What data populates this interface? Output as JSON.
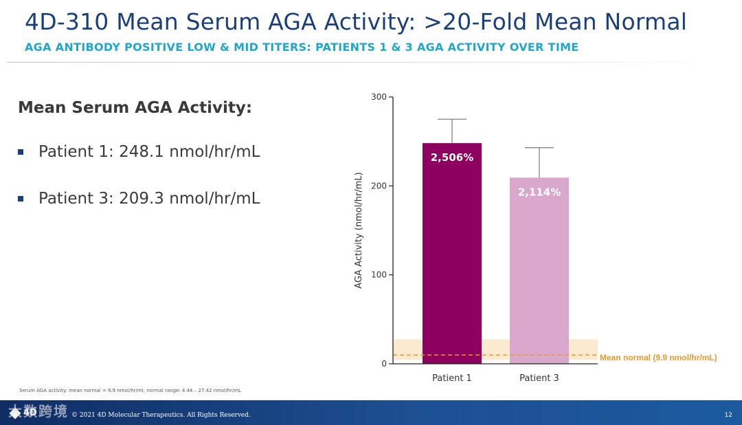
{
  "header": {
    "title": "4D-310 Mean Serum AGA Activity:  >20-Fold Mean Normal",
    "subtitle": "AGA ANTIBODY POSITIVE LOW & MID TITERS:  PATIENTS 1 & 3 AGA ACTIVITY OVER TIME"
  },
  "summary": {
    "heading": "Mean Serum AGA Activity:",
    "bullets": [
      "Patient 1:  248.1 nmol/hr/mL",
      "Patient 3:  209.3 nmol/hr/mL"
    ]
  },
  "footnote": "Serum AGA activity: mean normal = 9.9 nmol/hr/ml; normal range: 4.44 – 27.42 nmol/hr/mL",
  "footer": {
    "logo": "4D",
    "copyright": "© 2021 4D Molecular Therapeutics. All Rights Reserved.",
    "page_number": "12",
    "watermark": "大数跨境"
  },
  "colors": {
    "title": "#1b3f7a",
    "subtitle": "#1fa6c8",
    "patient1_bar": "#8e0060",
    "patient3_bar": "#d9a6cc",
    "normal_band": "#fbe9d0",
    "mean_line": "#e89a2c",
    "footer": "#1d4f91"
  },
  "chart_data": {
    "type": "bar",
    "title": "",
    "xlabel": "",
    "ylabel": "AGA Activity (nmol/hr/mL)",
    "categories": [
      "Patient 1",
      "Patient 3"
    ],
    "values": [
      248.1,
      209.3
    ],
    "error_upper": [
      275,
      243
    ],
    "bar_labels": [
      "2,506%",
      "2,114%"
    ],
    "ylim": [
      0,
      300
    ],
    "yticks": [
      0,
      100,
      200,
      300
    ],
    "reference_band": {
      "low": 4.44,
      "high": 27.42
    },
    "reference_line": {
      "value": 9.9,
      "label": "Mean normal (9.9 nmol/hr/mL)"
    },
    "grid": false
  }
}
